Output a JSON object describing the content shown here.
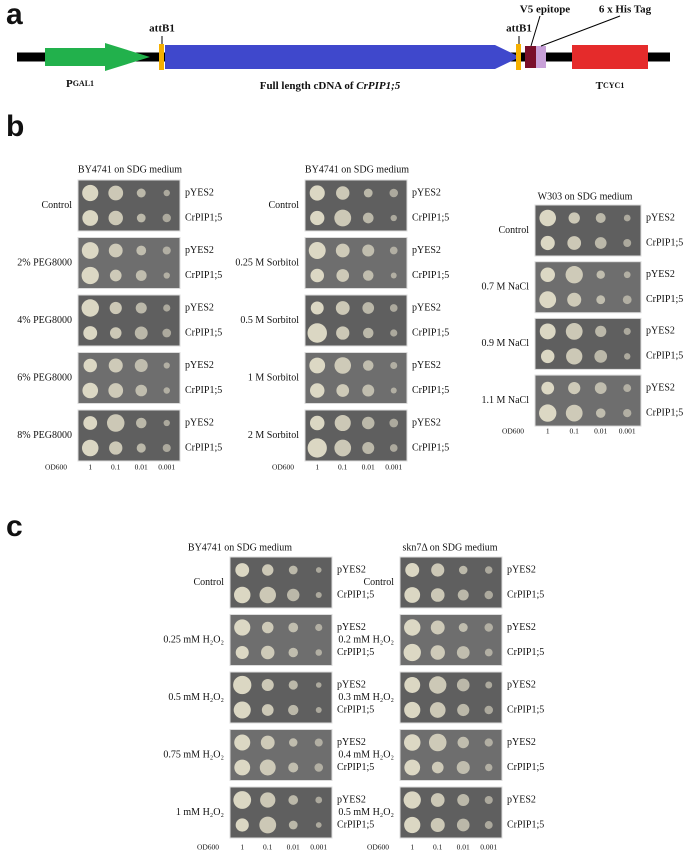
{
  "panel_a": {
    "label": "a",
    "promoter_main": "P",
    "promoter_sub": "GAL1",
    "att_left": "attB1",
    "att_right": "attB1",
    "insert_prefix": "Full length cDNA of ",
    "insert_gene": "CrPIP1;5",
    "v5": "V5 epitope",
    "his": "6 x His Tag",
    "terminator_main": "T",
    "terminator_sub": "CYC1"
  },
  "panel_b": {
    "label": "b",
    "blocks": [
      {
        "title": "BY4741 on SDG medium",
        "conditions": [
          {
            "label": "Control",
            "strains": [
              "pYES2",
              "CrPIP1;5"
            ]
          },
          {
            "label": "2% PEG8000",
            "strains": [
              "pYES2",
              "CrPIP1;5"
            ]
          },
          {
            "label": "4% PEG8000",
            "strains": [
              "pYES2",
              "CrPIP1;5"
            ]
          },
          {
            "label": "6% PEG8000",
            "strains": [
              "pYES2",
              "CrPIP1;5"
            ]
          },
          {
            "label": "8% PEG8000",
            "strains": [
              "pYES2",
              "CrPIP1;5"
            ]
          }
        ],
        "od": [
          "OD600",
          "1",
          "0.1",
          "0.01",
          "0.001"
        ]
      },
      {
        "title": "BY4741 on SDG medium",
        "conditions": [
          {
            "label": "Control",
            "strains": [
              "pYES2",
              "CrPIP1;5"
            ]
          },
          {
            "label": "0.25 M Sorbitol",
            "strains": [
              "pYES2",
              "CrPIP1;5"
            ]
          },
          {
            "label": "0.5 M Sorbitol",
            "strains": [
              "pYES2",
              "CrPIP1;5"
            ]
          },
          {
            "label": "1 M Sorbitol",
            "strains": [
              "pYES2",
              "CrPIP1;5"
            ]
          },
          {
            "label": "2 M Sorbitol",
            "strains": [
              "pYES2",
              "CrPIP1;5"
            ]
          }
        ],
        "od": [
          "OD600",
          "1",
          "0.1",
          "0.01",
          "0.001"
        ]
      },
      {
        "title": "W303 on SDG medium",
        "conditions": [
          {
            "label": "Control",
            "strains": [
              "pYES2",
              "CrPIP1;5"
            ]
          },
          {
            "label": "0.7 M NaCl",
            "strains": [
              "pYES2",
              "CrPIP1;5"
            ]
          },
          {
            "label": "0.9 M NaCl",
            "strains": [
              "pYES2",
              "CrPIP1;5"
            ]
          },
          {
            "label": "1.1 M NaCl",
            "strains": [
              "pYES2",
              "CrPIP1;5"
            ]
          }
        ],
        "od": [
          "OD600",
          "1",
          "0.1",
          "0.01",
          "0.001"
        ]
      }
    ]
  },
  "panel_c": {
    "label": "c",
    "blocks": [
      {
        "title": "BY4741 on SDG medium",
        "conditions": [
          {
            "label": "Control",
            "strains": [
              "pYES2",
              "CrPIP1;5"
            ]
          },
          {
            "label": "0.25 mM H₂O₂",
            "strains": [
              "pYES2",
              "CrPIP1;5"
            ]
          },
          {
            "label": "0.5 mM H₂O₂",
            "strains": [
              "pYES2",
              "CrPIP1;5"
            ]
          },
          {
            "label": "0.75 mM H₂O₂",
            "strains": [
              "pYES2",
              "CrPIP1;5"
            ]
          },
          {
            "label": "1 mM H₂O₂",
            "strains": [
              "pYES2",
              "CrPIP1;5"
            ]
          }
        ],
        "od": [
          "OD600",
          "1",
          "0.1",
          "0.01",
          "0.001"
        ]
      },
      {
        "title": "skn7Δ on SDG medium",
        "conditions": [
          {
            "label": "Control",
            "strains": [
              "pYES2",
              "CrPIP1;5"
            ]
          },
          {
            "label": "0.2 mM H₂O₂",
            "strains": [
              "pYES2",
              "CrPIP1;5"
            ]
          },
          {
            "label": "0.3 mM H₂O₂",
            "strains": [
              "pYES2",
              "CrPIP1;5"
            ]
          },
          {
            "label": "0.4 mM H₂O₂",
            "strains": [
              "pYES2",
              "CrPIP1;5"
            ]
          },
          {
            "label": "0.5 mM H₂O₂",
            "strains": [
              "pYES2",
              "CrPIP1;5"
            ]
          }
        ],
        "od": [
          "OD600",
          "1",
          "0.1",
          "0.01",
          "0.001"
        ]
      }
    ]
  }
}
